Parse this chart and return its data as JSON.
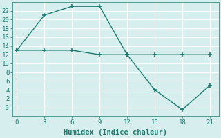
{
  "line1_x": [
    0,
    3,
    6,
    9,
    12,
    15,
    18,
    21
  ],
  "line1_y": [
    13,
    21,
    23,
    23,
    12,
    4,
    -0.5,
    5
  ],
  "line2_x": [
    0,
    3,
    6,
    9,
    12,
    15,
    18,
    21
  ],
  "line2_y": [
    13,
    13,
    13,
    12,
    12,
    12,
    12,
    12
  ],
  "line_color": "#1a7a6e",
  "bg_color": "#d6eeee",
  "grid_color": "#ffffff",
  "xlabel": "Humidex (Indice chaleur)",
  "xlim": [
    -0.5,
    22
  ],
  "ylim": [
    -2,
    24
  ],
  "xticks": [
    0,
    3,
    6,
    9,
    12,
    15,
    18,
    21
  ],
  "yticks": [
    0,
    2,
    4,
    6,
    8,
    10,
    12,
    14,
    16,
    18,
    20,
    22
  ],
  "ytick_labels": [
    "-0",
    "2",
    "4",
    "6",
    "8",
    "10",
    "12",
    "14",
    "16",
    "18",
    "20",
    "22"
  ],
  "marker": "+",
  "markersize": 4,
  "linewidth": 1.0,
  "font_family": "monospace",
  "xlabel_fontsize": 7.5,
  "tick_fontsize": 6.5
}
